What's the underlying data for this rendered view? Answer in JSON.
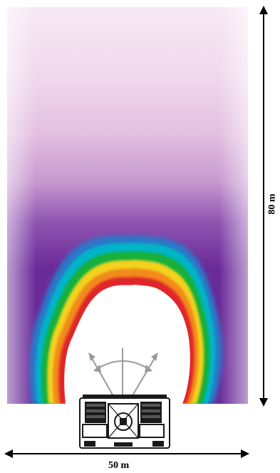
{
  "dimensions": {
    "width_label": "50 m",
    "height_label": "80 m"
  },
  "colors": {
    "outer_field": "#f3dcef",
    "near_field": "#6a2a98",
    "band_blue": "#2a78c8",
    "band_cyan": "#00b4c8",
    "band_green": "#18b03a",
    "band_yellow": "#f2d21a",
    "band_orange": "#f28a1c",
    "band_red": "#e0282a",
    "core": "#ffffff",
    "arrow_gray": "#9a9a9a",
    "device": "#1a1a1a"
  },
  "icons": {
    "device": "radar-array-icon",
    "coverage_arc": "coverage-arc-icon",
    "width_arrow": "double-arrow-horizontal-icon",
    "height_arrow": "double-arrow-vertical-icon"
  }
}
